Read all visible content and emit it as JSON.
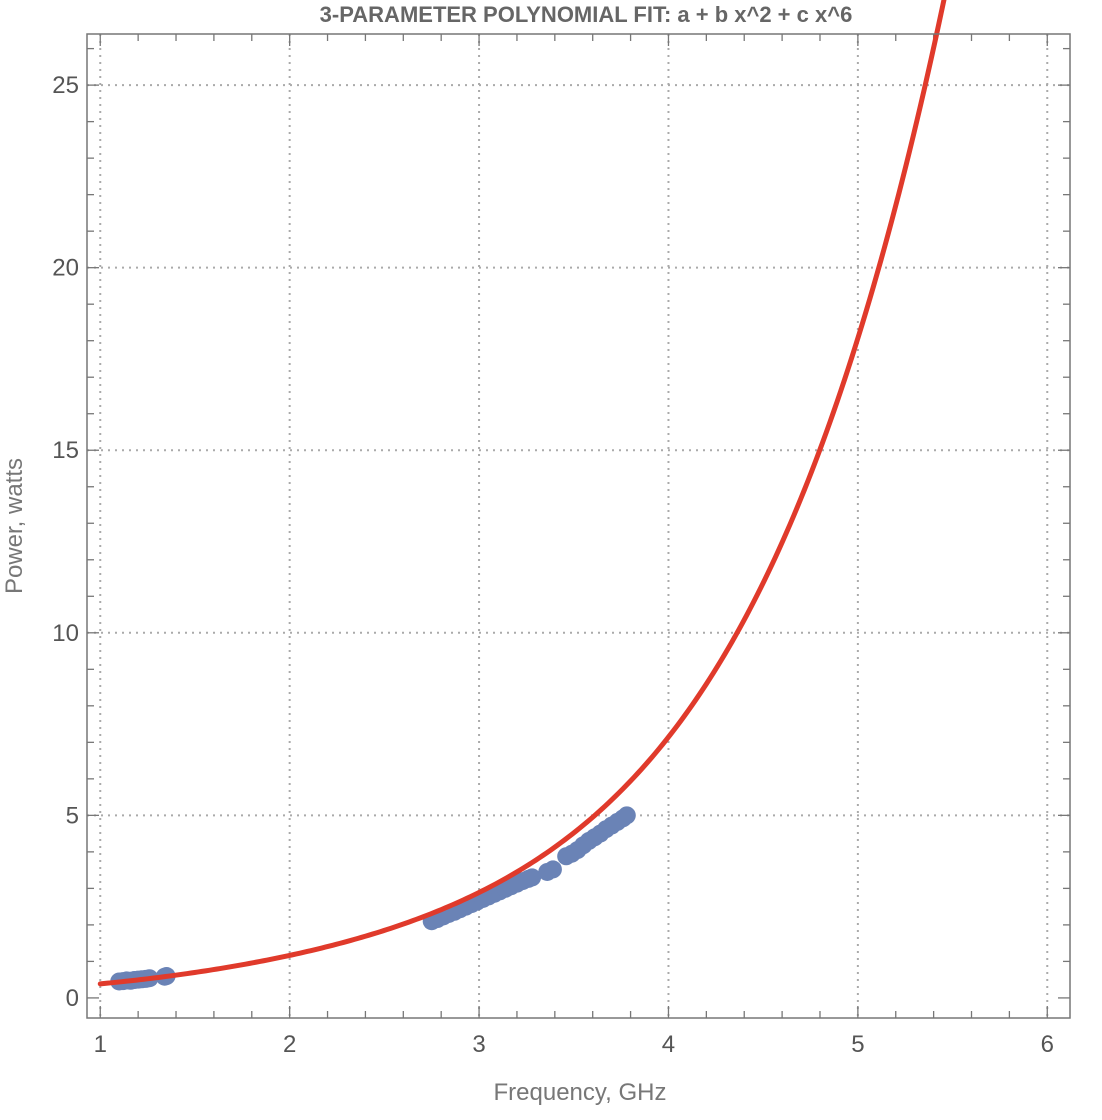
{
  "chart_data": {
    "type": "scatter",
    "title": "3-PARAMETER POLYNOMIAL FIT: a + b x^2 + c x^6",
    "xlabel": "Frequency, GHz",
    "ylabel": "Power, watts",
    "xlim": [
      0.93,
      6.12
    ],
    "ylim": [
      -0.55,
      26.4
    ],
    "xticks": [
      1,
      2,
      3,
      4,
      5,
      6
    ],
    "yticks": [
      0,
      5,
      10,
      15,
      20,
      25
    ],
    "grid": true,
    "legend": "none",
    "colors": {
      "points": "#6a83b6",
      "fit": "#e03a2b"
    },
    "series": [
      {
        "kind": "points",
        "x": [
          1.1,
          1.12,
          1.14,
          1.16,
          1.18,
          1.2,
          1.22,
          1.24,
          1.26,
          1.34,
          1.35,
          2.75,
          2.78,
          2.81,
          2.84,
          2.87,
          2.9,
          2.93,
          2.96,
          2.99,
          3.02,
          3.05,
          3.08,
          3.11,
          3.14,
          3.17,
          3.2,
          3.23,
          3.26,
          3.28,
          3.36,
          3.39,
          3.46,
          3.49,
          3.52,
          3.55,
          3.58,
          3.61,
          3.64,
          3.67,
          3.7,
          3.73,
          3.76,
          3.78
        ],
        "y": [
          0.45,
          0.46,
          0.48,
          0.47,
          0.49,
          0.5,
          0.51,
          0.52,
          0.54,
          0.58,
          0.6,
          2.1,
          2.16,
          2.23,
          2.3,
          2.36,
          2.43,
          2.5,
          2.57,
          2.64,
          2.71,
          2.78,
          2.85,
          2.92,
          2.99,
          3.06,
          3.13,
          3.2,
          3.26,
          3.3,
          3.45,
          3.52,
          3.88,
          3.95,
          4.05,
          4.18,
          4.3,
          4.4,
          4.5,
          4.62,
          4.72,
          4.82,
          4.92,
          5.0
        ]
      },
      {
        "kind": "fit",
        "model": "a + b x^2 + c x^6",
        "x_range": [
          1.0,
          5.6
        ]
      }
    ]
  }
}
